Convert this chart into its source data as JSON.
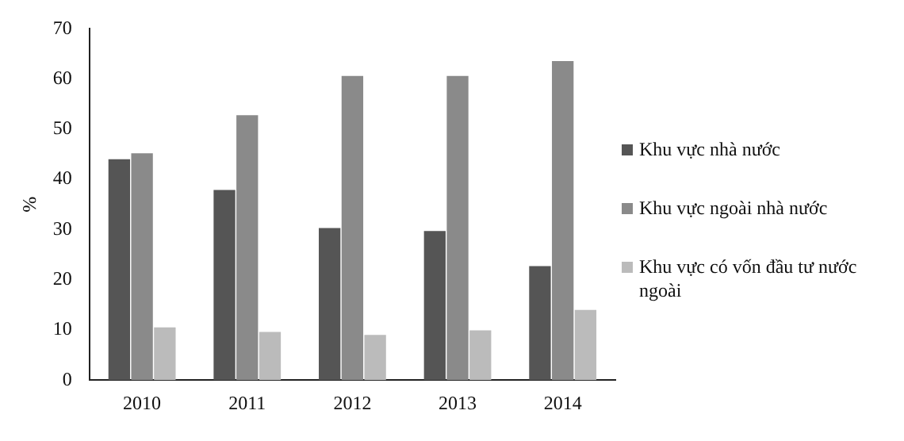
{
  "chart_data": {
    "type": "bar",
    "ylabel": "%",
    "categories": [
      "2010",
      "2011",
      "2012",
      "2013",
      "2014"
    ],
    "series": [
      {
        "name": "Khu vực nhà nước",
        "color": "#555555",
        "values": [
          44,
          37.9,
          30.3,
          29.7,
          22.7
        ]
      },
      {
        "name": "Khu vực ngoài nhà nước",
        "color": "#8a8a8a",
        "values": [
          45.2,
          52.8,
          60.6,
          60.6,
          63.6
        ]
      },
      {
        "name": "Khu vực có vốn đầu tư nước ngoài",
        "color": "#bbbbbb",
        "values": [
          10.5,
          9.6,
          9,
          9.9,
          14
        ]
      }
    ],
    "ylim": [
      0,
      70
    ],
    "yticks": [
      0,
      10,
      20,
      30,
      40,
      50,
      60,
      70
    ],
    "grid": false,
    "legend": "right"
  }
}
